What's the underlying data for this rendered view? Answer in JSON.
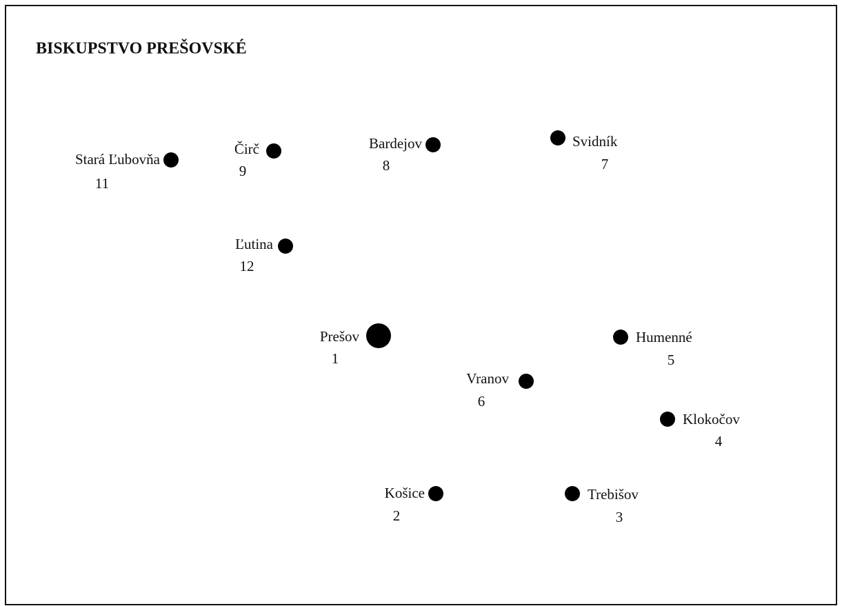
{
  "title": "BISKUPSTVO PREŠOVSKÉ",
  "places": [
    {
      "name": "Stará Ľubovňa",
      "number": "11"
    },
    {
      "name": "Čirč",
      "number": "9"
    },
    {
      "name": "Bardejov",
      "number": "8"
    },
    {
      "name": "Svidník",
      "number": "7"
    },
    {
      "name": "Ľutina",
      "number": "12"
    },
    {
      "name": "Prešov",
      "number": "1"
    },
    {
      "name": "Humenné",
      "number": "5"
    },
    {
      "name": "Vranov",
      "number": "6"
    },
    {
      "name": "Klokočov",
      "number": "4"
    },
    {
      "name": "Košice",
      "number": "2"
    },
    {
      "name": "Trebišov",
      "number": "3"
    }
  ]
}
